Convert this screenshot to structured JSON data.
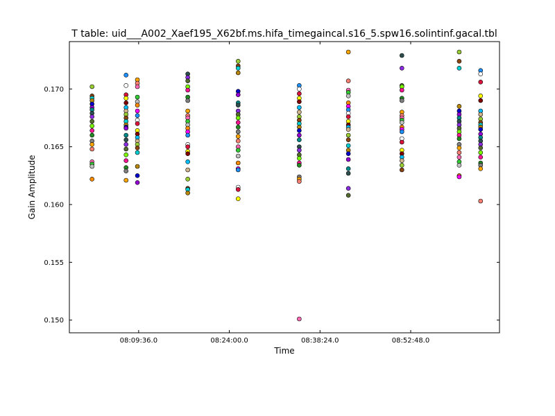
{
  "chart_data": {
    "type": "scatter",
    "title": "T table: uid___A002_Xaef195_X62bf.ms.hifa_timegaincal.s16_5.spw16.solintinf.gacal.tbl",
    "xlabel": "Time",
    "ylabel": "Gain Amplitude",
    "x_ticks": [
      "08:09:36.0",
      "08:24:00.0",
      "08:38:24.0",
      "08:52:48.0"
    ],
    "y_ticks": [
      "0.150",
      "0.155",
      "0.160",
      "0.165",
      "0.170"
    ],
    "xlim": [
      "07:58:36",
      "09:06:54"
    ],
    "ylim": [
      0.1489,
      0.1741
    ],
    "grid": false,
    "legend": "none",
    "colors": [
      "#9acd32",
      "#ff8c00",
      "#7cfc00",
      "#8b4513",
      "#ff00ff",
      "#ff1493",
      "#00ced1",
      "#1e90ff",
      "#228b22",
      "#b8860b",
      "#ffffff",
      "#808080",
      "#0000cd",
      "#dc143c",
      "#ffa500",
      "#9400d3",
      "#ffff00",
      "#fa8072",
      "#008b8b",
      "#800000",
      "#ff69b4",
      "#2f4f4f",
      "#00bfff",
      "#32cd32",
      "#8a2be2",
      "#d2b48c",
      "#c0c0c0",
      "#556b2f"
    ],
    "series": [
      {
        "x": "08:02:12",
        "values": [
          0.1702,
          0.1694,
          0.1692,
          0.169,
          0.1687,
          0.1684,
          0.1682,
          0.1679,
          0.1676,
          0.1672,
          0.1668,
          0.1664,
          0.166,
          0.1655,
          0.1652,
          0.1648,
          0.1637,
          0.1635,
          0.1633,
          0.1622
        ]
      },
      {
        "x": "08:07:36",
        "values": [
          0.1712,
          0.1703,
          0.1695,
          0.1692,
          0.1688,
          0.1684,
          0.1681,
          0.1678,
          0.1675,
          0.1672,
          0.1669,
          0.1667,
          0.1666,
          0.166,
          0.1656,
          0.1652,
          0.1648,
          0.1643,
          0.1638,
          0.1632,
          0.1629,
          0.1621
        ]
      },
      {
        "x": "08:09:24",
        "values": [
          0.1708,
          0.1705,
          0.1702,
          0.1693,
          0.1689,
          0.1686,
          0.1681,
          0.1677,
          0.1673,
          0.167,
          0.1664,
          0.1661,
          0.1658,
          0.1655,
          0.1652,
          0.1649,
          0.1645,
          0.1633,
          0.1625,
          0.1619
        ]
      },
      {
        "x": "08:17:24",
        "values": [
          0.1713,
          0.171,
          0.1707,
          0.1702,
          0.1699,
          0.1693,
          0.169,
          0.1681,
          0.1677,
          0.1675,
          0.1672,
          0.1669,
          0.1666,
          0.1663,
          0.166,
          0.1652,
          0.165,
          0.1646,
          0.1644,
          0.1637,
          0.163,
          0.1622,
          0.1614,
          0.1613,
          0.161
        ]
      },
      {
        "x": "08:25:24",
        "values": [
          0.1724,
          0.172,
          0.1718,
          0.1714,
          0.1698,
          0.1695,
          0.1688,
          0.1686,
          0.1681,
          0.1678,
          0.1675,
          0.1671,
          0.1667,
          0.1663,
          0.1659,
          0.1655,
          0.165,
          0.1647,
          0.1642,
          0.1636,
          0.1631,
          0.163,
          0.1615,
          0.1613,
          0.1605
        ]
      },
      {
        "x": "08:35:06",
        "values": [
          0.1703,
          0.17,
          0.1696,
          0.1692,
          0.1689,
          0.1684,
          0.168,
          0.1676,
          0.1673,
          0.167,
          0.1667,
          0.1664,
          0.166,
          0.1656,
          0.165,
          0.1647,
          0.1643,
          0.164,
          0.1636,
          0.1634,
          0.1624,
          0.1622,
          0.162,
          0.1501
        ]
      },
      {
        "x": "08:42:54",
        "values": [
          0.1732,
          0.1707,
          0.1699,
          0.1697,
          0.1694,
          0.1688,
          0.1685,
          0.1682,
          0.1679,
          0.1676,
          0.1672,
          0.1669,
          0.1667,
          0.1665,
          0.166,
          0.1656,
          0.1651,
          0.1647,
          0.1644,
          0.1639,
          0.1631,
          0.1627,
          0.1614,
          0.1608
        ]
      },
      {
        "x": "08:51:24",
        "values": [
          0.1729,
          0.1718,
          0.1703,
          0.1702,
          0.1699,
          0.1692,
          0.169,
          0.168,
          0.1677,
          0.1675,
          0.1673,
          0.1671,
          0.1667,
          0.1665,
          0.1663,
          0.1657,
          0.1654,
          0.1647,
          0.1644,
          0.1641,
          0.1638,
          0.1634,
          0.163
        ]
      },
      {
        "x": "09:00:30",
        "values": [
          0.1732,
          0.1724,
          0.1718,
          0.1685,
          0.1681,
          0.1678,
          0.1675,
          0.1672,
          0.1669,
          0.1666,
          0.1663,
          0.166,
          0.1657,
          0.1652,
          0.1649,
          0.1645,
          0.1641,
          0.1637,
          0.1634,
          0.1625,
          0.1624
        ]
      },
      {
        "x": "09:03:54",
        "values": [
          0.1716,
          0.1713,
          0.1706,
          0.1694,
          0.169,
          0.1681,
          0.1678,
          0.1674,
          0.1671,
          0.1669,
          0.1667,
          0.1665,
          0.1661,
          0.1658,
          0.1655,
          0.1652,
          0.1649,
          0.1645,
          0.1641,
          0.1636,
          0.1634,
          0.1631,
          0.1603
        ]
      }
    ]
  }
}
